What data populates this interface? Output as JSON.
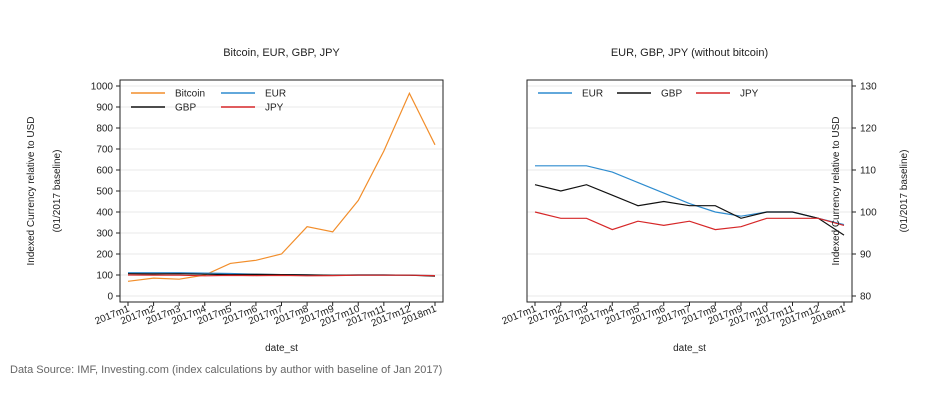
{
  "footer": {
    "source": "Data Source: IMF, Investing.com (index calculations by author with baseline of Jan 2017)"
  },
  "chart_data": [
    {
      "type": "line",
      "title": "Bitcoin, EUR, GBP, JPY",
      "xlabel": "date_st",
      "ylabel": "Indexed Currency relative to USD",
      "ylabel2": "(01/2017 baseline)",
      "x": [
        "2017m1",
        "2017m2",
        "2017m3",
        "2017m4",
        "2017m5",
        "2017m6",
        "2017m7",
        "2017m8",
        "2017m9",
        "2017m10",
        "2017m11",
        "2017m12",
        "2018m1"
      ],
      "ylim": [
        0,
        1000
      ],
      "yticks": [
        0,
        100,
        200,
        300,
        400,
        500,
        600,
        700,
        800,
        900,
        1000
      ],
      "grid": true,
      "legend": "top-left",
      "series": [
        {
          "name": "Bitcoin",
          "color": "#f28e2b",
          "values": [
            70,
            85,
            80,
            100,
            155,
            170,
            200,
            330,
            305,
            455,
            690,
            965,
            720
          ]
        },
        {
          "name": "EUR",
          "color": "#2e8ccf",
          "values": [
            111,
            111,
            111,
            109,
            107,
            104,
            102,
            100,
            98,
            100,
            100,
            99,
            97
          ]
        },
        {
          "name": "GBP",
          "color": "#111111",
          "values": [
            106,
            105,
            106,
            104,
            102,
            103,
            102,
            101,
            99,
            100,
            100,
            99,
            95
          ]
        },
        {
          "name": "JPY",
          "color": "#d62728",
          "values": [
            100,
            99,
            99,
            96,
            98,
            97,
            98,
            96,
            97,
            99,
            99,
            99,
            97
          ]
        }
      ]
    },
    {
      "type": "line",
      "title": "EUR, GBP, JPY (without bitcoin)",
      "xlabel": "date_st",
      "ylabel": "Indexed Currency relative to USD",
      "ylabel2": "(01/2017 baseline)",
      "x": [
        "2017m1",
        "2017m2",
        "2017m3",
        "2017m4",
        "2017m5",
        "2017m6",
        "2017m7",
        "2017m8",
        "2017m9",
        "2017m10",
        "2017m11",
        "2017m12",
        "2018m1"
      ],
      "ylim": [
        80,
        130
      ],
      "yticks": [
        80,
        90,
        100,
        110,
        120,
        130
      ],
      "grid": true,
      "y_axis_side": "right",
      "legend": "top",
      "series": [
        {
          "name": "EUR",
          "color": "#2e8ccf",
          "values": [
            111,
            111,
            111,
            109.5,
            107,
            104.5,
            102,
            100,
            99,
            100,
            100,
            98.5,
            97
          ]
        },
        {
          "name": "GBP",
          "color": "#111111",
          "values": [
            106.5,
            105,
            106.5,
            104,
            101.5,
            102.5,
            101.5,
            101.5,
            98.5,
            100,
            100,
            98.5,
            94.5
          ]
        },
        {
          "name": "JPY",
          "color": "#d62728",
          "values": [
            100,
            98.5,
            98.5,
            95.8,
            97.8,
            96.8,
            97.8,
            95.8,
            96.5,
            98.5,
            98.5,
            98.5,
            96.8
          ]
        }
      ]
    }
  ]
}
